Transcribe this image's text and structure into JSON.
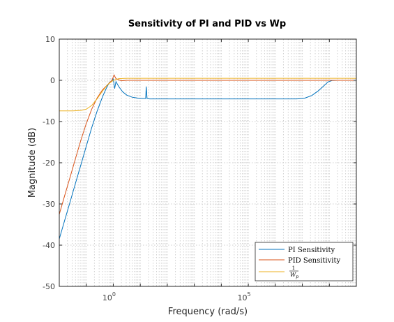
{
  "chart_data": {
    "type": "line",
    "title": "Sensitivity of PI and PID vs Wp",
    "xlabel": "Frequency  (rad/s)",
    "ylabel": "Magnitude (dB)",
    "xscale": "log",
    "xlim_log10": [
      -2,
      9
    ],
    "ylim": [
      -50,
      10
    ],
    "yticks": [
      10,
      0,
      -10,
      -20,
      -30,
      -40,
      -50
    ],
    "xticks_log10": [
      0,
      5
    ],
    "xtick_labels": [
      {
        "base": "10",
        "exp": "0"
      },
      {
        "base": "10",
        "exp": "5"
      }
    ],
    "grid": true,
    "legend_position": "bottom-right",
    "series": [
      {
        "name": "PI Sensitivity",
        "color": "#0072BD",
        "points": [
          [
            -2,
            -38.5
          ],
          [
            -1.8,
            -34
          ],
          [
            -1.6,
            -29.5
          ],
          [
            -1.4,
            -25
          ],
          [
            -1.2,
            -20.5
          ],
          [
            -1,
            -16
          ],
          [
            -0.8,
            -11.5
          ],
          [
            -0.6,
            -7.5
          ],
          [
            -0.4,
            -4
          ],
          [
            -0.25,
            -1.8
          ],
          [
            -0.15,
            -0.6
          ],
          [
            -0.05,
            -0.1
          ],
          [
            0,
            0.3
          ],
          [
            0.05,
            -2
          ],
          [
            0.1,
            -0.3
          ],
          [
            0.2,
            -1.5
          ],
          [
            0.35,
            -2.8
          ],
          [
            0.5,
            -3.6
          ],
          [
            0.7,
            -4.1
          ],
          [
            0.9,
            -4.3
          ],
          [
            1.1,
            -4.4
          ],
          [
            1.2,
            -4.4
          ],
          [
            1.22,
            -1.5
          ],
          [
            1.25,
            -4.4
          ],
          [
            1.35,
            -4.5
          ],
          [
            2,
            -4.5
          ],
          [
            3,
            -4.5
          ],
          [
            4,
            -4.5
          ],
          [
            5,
            -4.5
          ],
          [
            6,
            -4.5
          ],
          [
            6.8,
            -4.5
          ],
          [
            7.1,
            -4.3
          ],
          [
            7.35,
            -3.7
          ],
          [
            7.6,
            -2.5
          ],
          [
            7.8,
            -1.3
          ],
          [
            7.95,
            -0.4
          ],
          [
            8.1,
            -0.05
          ],
          [
            8.3,
            0
          ],
          [
            9,
            0
          ]
        ]
      },
      {
        "name": "PID Sensitivity",
        "color": "#D95319",
        "points": [
          [
            -2,
            -32.5
          ],
          [
            -1.8,
            -28
          ],
          [
            -1.6,
            -23.5
          ],
          [
            -1.4,
            -19
          ],
          [
            -1.2,
            -14.5
          ],
          [
            -1,
            -10.5
          ],
          [
            -0.8,
            -7
          ],
          [
            -0.6,
            -4.3
          ],
          [
            -0.4,
            -2.3
          ],
          [
            -0.2,
            -1
          ],
          [
            -0.05,
            0
          ],
          [
            0.03,
            1.3
          ],
          [
            0.1,
            0.4
          ],
          [
            0.2,
            0.1
          ],
          [
            0.3,
            -0.1
          ],
          [
            0.5,
            0
          ],
          [
            1,
            0
          ],
          [
            2,
            0
          ],
          [
            5,
            0
          ],
          [
            9,
            0
          ]
        ]
      },
      {
        "name": "1/Wp",
        "label_num": "1",
        "label_den": "W",
        "label_sub": "p",
        "color": "#EDB120",
        "points": [
          [
            -2,
            -7.4
          ],
          [
            -1.5,
            -7.4
          ],
          [
            -1.2,
            -7.3
          ],
          [
            -1,
            -7
          ],
          [
            -0.8,
            -6.1
          ],
          [
            -0.6,
            -4.5
          ],
          [
            -0.4,
            -2.6
          ],
          [
            -0.2,
            -1
          ],
          [
            0,
            0
          ],
          [
            0.2,
            0.4
          ],
          [
            0.5,
            0.5
          ],
          [
            1,
            0.5
          ],
          [
            2,
            0.5
          ],
          [
            5,
            0.5
          ],
          [
            9,
            0.5
          ]
        ]
      }
    ]
  }
}
